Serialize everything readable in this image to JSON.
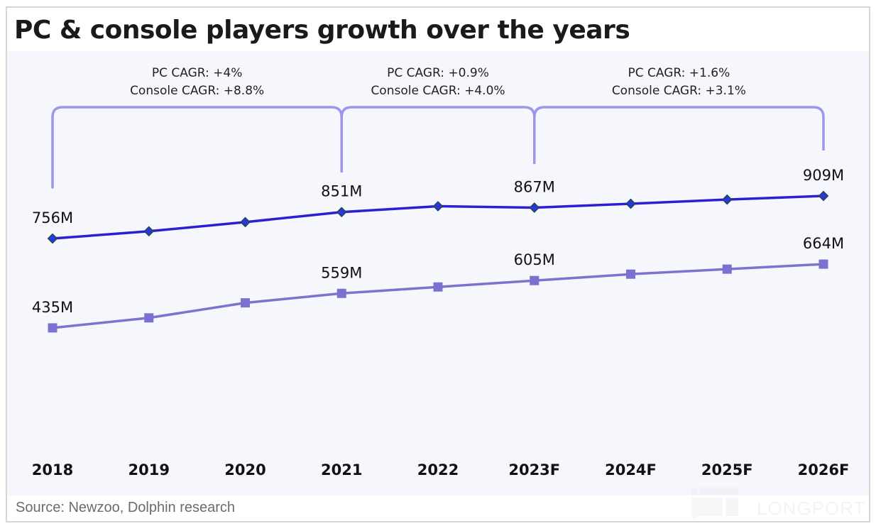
{
  "title": "PC & console players growth over the years",
  "source": "Source: Newzoo, Dolphin research",
  "watermark": "LONGPORT",
  "colors": {
    "pc_line": "#2b1fd6",
    "pc_marker_fill": "#2b35d8",
    "pc_marker_stroke": "#1d4a3a",
    "console_line": "#7b73cf",
    "console_marker": "#7a72d0",
    "bracket": "#9d96ea",
    "plot_background": "#f6f7fc"
  },
  "chart_data": {
    "type": "line",
    "title": "PC & console players growth over the years",
    "xlabel": "",
    "ylabel": "",
    "categories": [
      "2018",
      "2019",
      "2020",
      "2021",
      "2022",
      "2023F",
      "2024F",
      "2025F",
      "2026F"
    ],
    "ylim": [
      300,
      1000
    ],
    "grid": false,
    "legend": "none",
    "series": [
      {
        "name": "PC",
        "marker": "diamond",
        "values": [
          756,
          782,
          815,
          851,
          872,
          867,
          881,
          896,
          909
        ],
        "labels": [
          "756M",
          null,
          null,
          "851M",
          null,
          "867M",
          null,
          null,
          "909M"
        ]
      },
      {
        "name": "Console",
        "marker": "square",
        "values": [
          435,
          471,
          525,
          559,
          582,
          605,
          628,
          646,
          664
        ],
        "labels": [
          "435M",
          null,
          null,
          "559M",
          null,
          "605M",
          null,
          null,
          "664M"
        ]
      }
    ],
    "annotations": [
      {
        "from": "2018",
        "to": "2021",
        "lines": [
          "PC CAGR: +4%",
          "Console CAGR: +8.8%"
        ]
      },
      {
        "from": "2021",
        "to": "2023F",
        "lines": [
          "PC CAGR: +0.9%",
          "Console CAGR: +4.0%"
        ]
      },
      {
        "from": "2023F",
        "to": "2026F",
        "lines": [
          "PC CAGR: +1.6%",
          "Console CAGR: +3.1%"
        ]
      }
    ]
  }
}
